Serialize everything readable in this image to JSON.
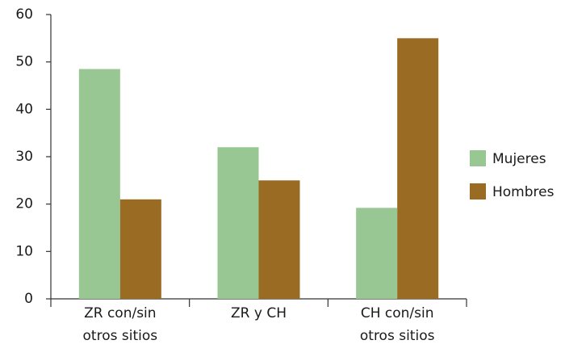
{
  "chart_data": {
    "type": "bar",
    "categories": [
      "ZR con/sin otros sitios",
      "ZR y CH",
      "CH con/sin otros sitios"
    ],
    "series": [
      {
        "name": "Mujeres",
        "color": "#98c793",
        "values": [
          48.5,
          32,
          19.2
        ]
      },
      {
        "name": "Hombres",
        "color": "#9a6b23",
        "values": [
          21,
          25,
          55
        ]
      }
    ],
    "ylim": [
      0,
      60
    ],
    "yticks": [
      0,
      10,
      20,
      30,
      40,
      50,
      60
    ],
    "grid": false,
    "legend": "right"
  }
}
